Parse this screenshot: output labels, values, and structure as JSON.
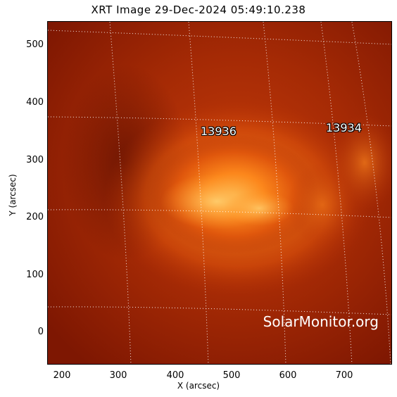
{
  "title": "XRT Image 29-Dec-2024 05:49:10.238",
  "axes": {
    "xlabel": "X (arcsec)",
    "ylabel": "Y (arcsec)",
    "xticks": [
      "200",
      "300",
      "400",
      "500",
      "600",
      "700"
    ],
    "yticks": [
      "500",
      "400",
      "300",
      "200",
      "100",
      "0"
    ]
  },
  "regions": {
    "ar1": "13936",
    "ar2": "13934"
  },
  "watermark": "SolarMonitor.org",
  "colors": {
    "background": "#8a1b02",
    "active_region": "#ff9a2a",
    "grid": "#ffffff"
  }
}
